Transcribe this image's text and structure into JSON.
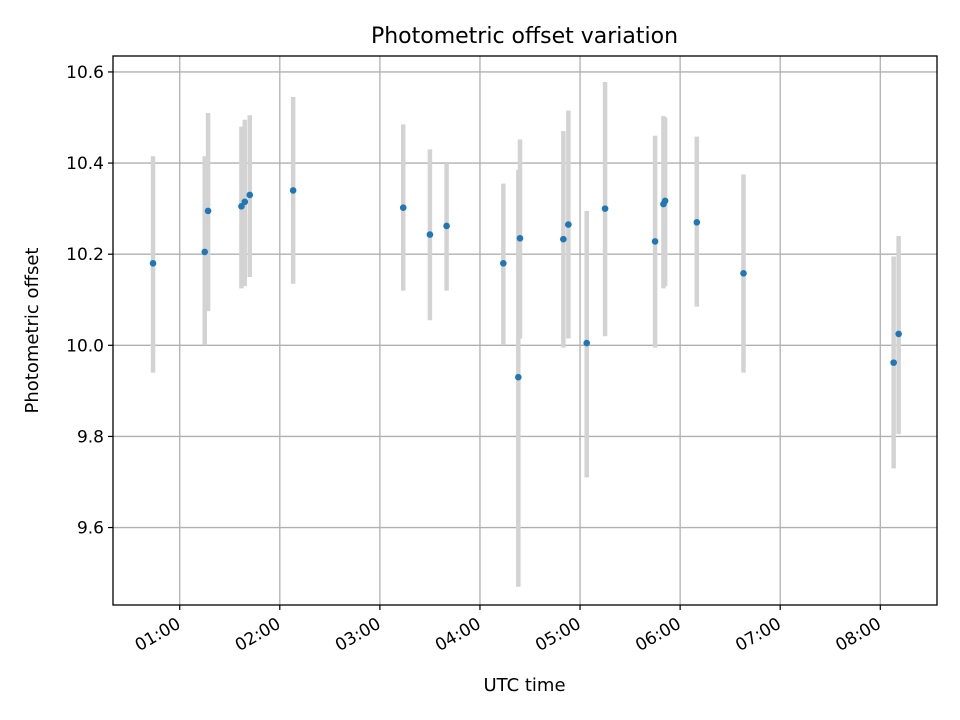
{
  "chart_data": {
    "type": "scatter",
    "title": "Photometric offset variation",
    "xlabel": "UTC time",
    "ylabel": "Photometric offset",
    "x_unit": "time of day (HH:MM)",
    "xlim": [
      "00:20",
      "08:34"
    ],
    "ylim": [
      9.43,
      10.635
    ],
    "xticks": [
      "01:00",
      "02:00",
      "03:00",
      "04:00",
      "05:00",
      "06:00",
      "07:00",
      "08:00"
    ],
    "yticks": [
      "9.6",
      "9.8",
      "10.0",
      "10.2",
      "10.4",
      "10.6"
    ],
    "grid": true,
    "point_color": "#1f77b4",
    "errorbar_color": "#d3d3d3",
    "points": [
      {
        "t": "00:44",
        "y": 10.18,
        "lo": 9.94,
        "hi": 10.415
      },
      {
        "t": "01:15",
        "y": 10.205,
        "lo": 10.0,
        "hi": 10.415
      },
      {
        "t": "01:17",
        "y": 10.295,
        "lo": 10.075,
        "hi": 10.51
      },
      {
        "t": "01:37",
        "y": 10.305,
        "lo": 10.125,
        "hi": 10.48
      },
      {
        "t": "01:39",
        "y": 10.315,
        "lo": 10.13,
        "hi": 10.495
      },
      {
        "t": "01:42",
        "y": 10.33,
        "lo": 10.15,
        "hi": 10.505
      },
      {
        "t": "02:08",
        "y": 10.34,
        "lo": 10.135,
        "hi": 10.545
      },
      {
        "t": "03:14",
        "y": 10.302,
        "lo": 10.12,
        "hi": 10.485
      },
      {
        "t": "03:30",
        "y": 10.243,
        "lo": 10.055,
        "hi": 10.43
      },
      {
        "t": "03:40",
        "y": 10.262,
        "lo": 10.12,
        "hi": 10.4
      },
      {
        "t": "04:14",
        "y": 10.18,
        "lo": 10.0,
        "hi": 10.355
      },
      {
        "t": "04:23",
        "y": 9.93,
        "lo": 9.47,
        "hi": 10.385
      },
      {
        "t": "04:24",
        "y": 10.235,
        "lo": 10.015,
        "hi": 10.452
      },
      {
        "t": "04:50",
        "y": 10.233,
        "lo": 9.995,
        "hi": 10.47
      },
      {
        "t": "04:53",
        "y": 10.265,
        "lo": 10.015,
        "hi": 10.515
      },
      {
        "t": "05:04",
        "y": 10.005,
        "lo": 9.71,
        "hi": 10.295
      },
      {
        "t": "05:15",
        "y": 10.3,
        "lo": 10.02,
        "hi": 10.578
      },
      {
        "t": "05:45",
        "y": 10.228,
        "lo": 9.995,
        "hi": 10.46
      },
      {
        "t": "05:50",
        "y": 10.31,
        "lo": 10.125,
        "hi": 10.503
      },
      {
        "t": "05:51",
        "y": 10.317,
        "lo": 10.13,
        "hi": 10.5
      },
      {
        "t": "06:10",
        "y": 10.27,
        "lo": 10.085,
        "hi": 10.458
      },
      {
        "t": "06:38",
        "y": 10.158,
        "lo": 9.94,
        "hi": 10.375
      },
      {
        "t": "08:08",
        "y": 9.962,
        "lo": 9.73,
        "hi": 10.195
      },
      {
        "t": "08:11",
        "y": 10.025,
        "lo": 9.805,
        "hi": 10.24
      }
    ]
  }
}
